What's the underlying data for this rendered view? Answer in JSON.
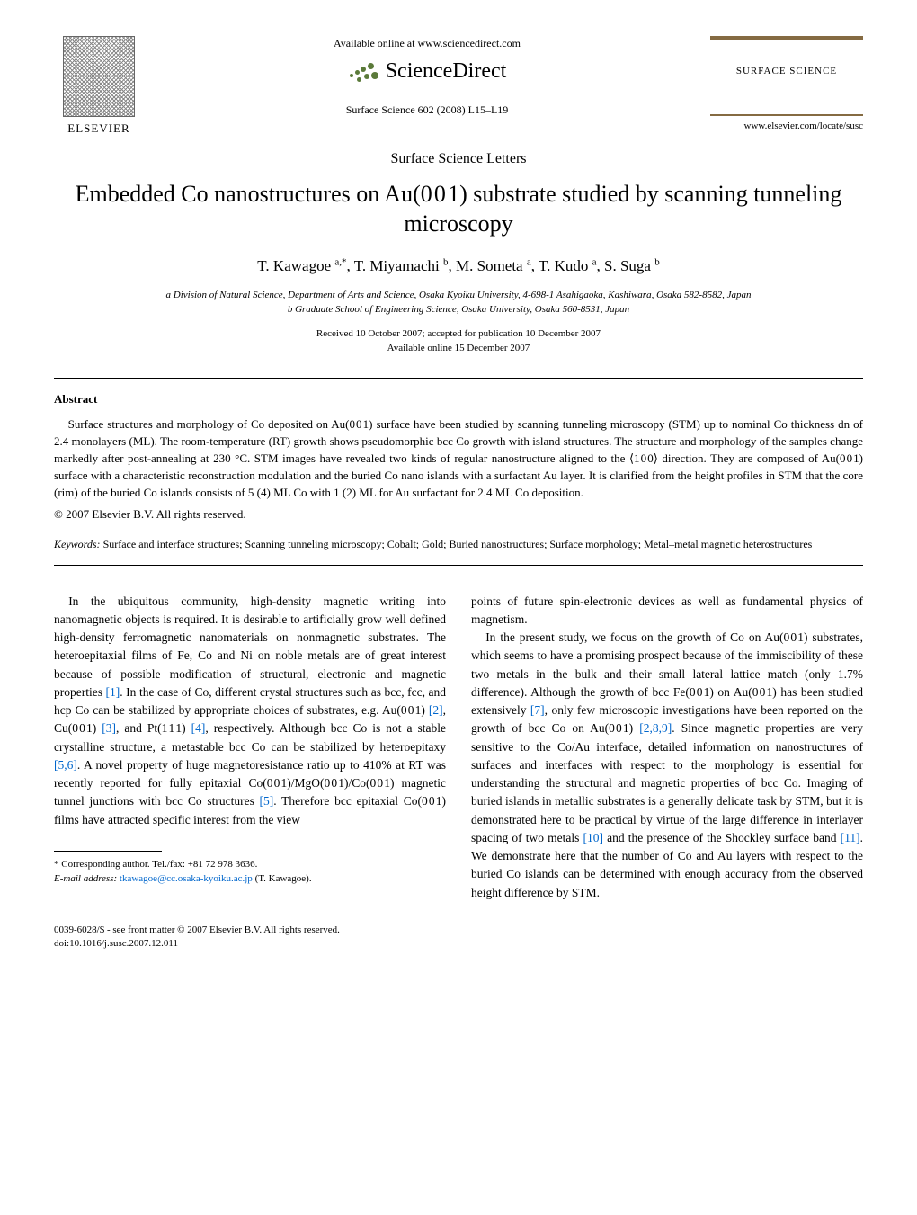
{
  "header": {
    "elsevier_label": "ELSEVIER",
    "available_online": "Available online at www.sciencedirect.com",
    "sciencedirect": "ScienceDirect",
    "journal_ref": "Surface Science 602 (2008) L15–L19",
    "journal_box_title": "SURFACE SCIENCE",
    "journal_box_url": "www.elsevier.com/locate/susc"
  },
  "letters_label": "Surface Science Letters",
  "title": "Embedded Co nanostructures on Au(0 0 1) substrate studied by scanning tunneling microscopy",
  "authors_html": "T. Kawagoe <sup>a,*</sup>, T. Miyamachi <sup>b</sup>, M. Someta <sup>a</sup>, T. Kudo <sup>a</sup>, S. Suga <sup>b</sup>",
  "affiliations": {
    "a": "a Division of Natural Science, Department of Arts and Science, Osaka Kyoiku University, 4-698-1 Asahigaoka, Kashiwara, Osaka 582-8582, Japan",
    "b": "b Graduate School of Engineering Science, Osaka University, Osaka 560-8531, Japan"
  },
  "dates": {
    "received": "Received 10 October 2007; accepted for publication 10 December 2007",
    "online": "Available online 15 December 2007"
  },
  "abstract_label": "Abstract",
  "abstract_text": "Surface structures and morphology of Co deposited on Au(0 0 1) surface have been studied by scanning tunneling microscopy (STM) up to nominal Co thickness dn of 2.4 monolayers (ML). The room-temperature (RT) growth shows pseudomorphic bcc Co growth with island structures. The structure and morphology of the samples change markedly after post-annealing at 230 °C. STM images have revealed two kinds of regular nanostructure aligned to the ⟨1 0 0⟩ direction. They are composed of Au(0 0 1) surface with a characteristic reconstruction modulation and the buried Co nano islands with a surfactant Au layer. It is clarified from the height profiles in STM that the core (rim) of the buried Co islands consists of 5 (4) ML Co with 1 (2) ML for Au surfactant for 2.4 ML Co deposition.",
  "copyright": "© 2007 Elsevier B.V. All rights reserved.",
  "keywords_label": "Keywords:",
  "keywords_text": " Surface and interface structures; Scanning tunneling microscopy; Cobalt; Gold; Buried nanostructures; Surface morphology; Metal–metal magnetic heterostructures",
  "body": {
    "col1_p1_a": "In the ubiquitous community, high-density magnetic writing into nanomagnetic objects is required. It is desirable to artificially grow well defined high-density ferromagnetic nanomaterials on nonmagnetic substrates. The heteroepitaxial films of Fe, Co and Ni on noble metals are of great interest because of possible modification of structural, electronic and magnetic properties ",
    "ref1": "[1]",
    "col1_p1_b": ". In the case of Co, different crystal structures such as bcc, fcc, and hcp Co can be stabilized by appropriate choices of substrates, e.g. Au(0 0 1) ",
    "ref2": "[2]",
    "col1_p1_c": ", Cu(0 0 1) ",
    "ref3": "[3]",
    "col1_p1_d": ", and Pt(1 1 1) ",
    "ref4": "[4]",
    "col1_p1_e": ", respectively. Although bcc Co is not a stable crystalline structure, a metastable bcc Co can be stabilized by heteroepitaxy ",
    "ref56": "[5,6]",
    "col1_p1_f": ". A novel property of huge magnetoresistance ratio up to 410% at RT was recently reported for fully epitaxial Co(0 0 1)/MgO(0 0 1)/Co(0 0 1) magnetic tunnel junctions with bcc Co structures ",
    "ref5": "[5]",
    "col1_p1_g": ". Therefore bcc epitaxial Co(0 0 1) films have attracted specific interest from the view",
    "col2_p1": "points of future spin-electronic devices as well as fundamental physics of magnetism.",
    "col2_p2_a": "In the present study, we focus on the growth of Co on Au(0 0 1) substrates, which seems to have a promising prospect because of the immiscibility of these two metals in the bulk and their small lateral lattice match (only 1.7% difference). Although the growth of bcc Fe(0 0 1) on Au(0 0 1) has been studied extensively ",
    "ref7": "[7]",
    "col2_p2_b": ", only few microscopic investigations have been reported on the growth of bcc Co on Au(0 0 1) ",
    "ref289": "[2,8,9]",
    "col2_p2_c": ". Since magnetic properties are very sensitive to the Co/Au interface, detailed information on nanostructures of surfaces and interfaces with respect to the morphology is essential for understanding the structural and magnetic properties of bcc Co. Imaging of buried islands in metallic substrates is a generally delicate task by STM, but it is demonstrated here to be practical by virtue of the large difference in interlayer spacing of two metals ",
    "ref10": "[10]",
    "col2_p2_d": " and the presence of the Shockley surface band ",
    "ref11": "[11]",
    "col2_p2_e": ". We demonstrate here that the number of Co and Au layers with respect to the buried Co islands can be determined with enough accuracy from the observed height difference by STM."
  },
  "footnote": {
    "corr": "* Corresponding author. Tel./fax: +81 72 978 3636.",
    "email_label": "E-mail address: ",
    "email": "tkawagoe@cc.osaka-kyoiku.ac.jp",
    "email_suffix": " (T. Kawagoe)."
  },
  "bottom": {
    "line1": "0039-6028/$ - see front matter © 2007 Elsevier B.V. All rights reserved.",
    "line2": "doi:10.1016/j.susc.2007.12.011"
  },
  "colors": {
    "link": "#0066cc",
    "journal_rule": "#856b42",
    "sd_green": "#5b7a3a"
  }
}
